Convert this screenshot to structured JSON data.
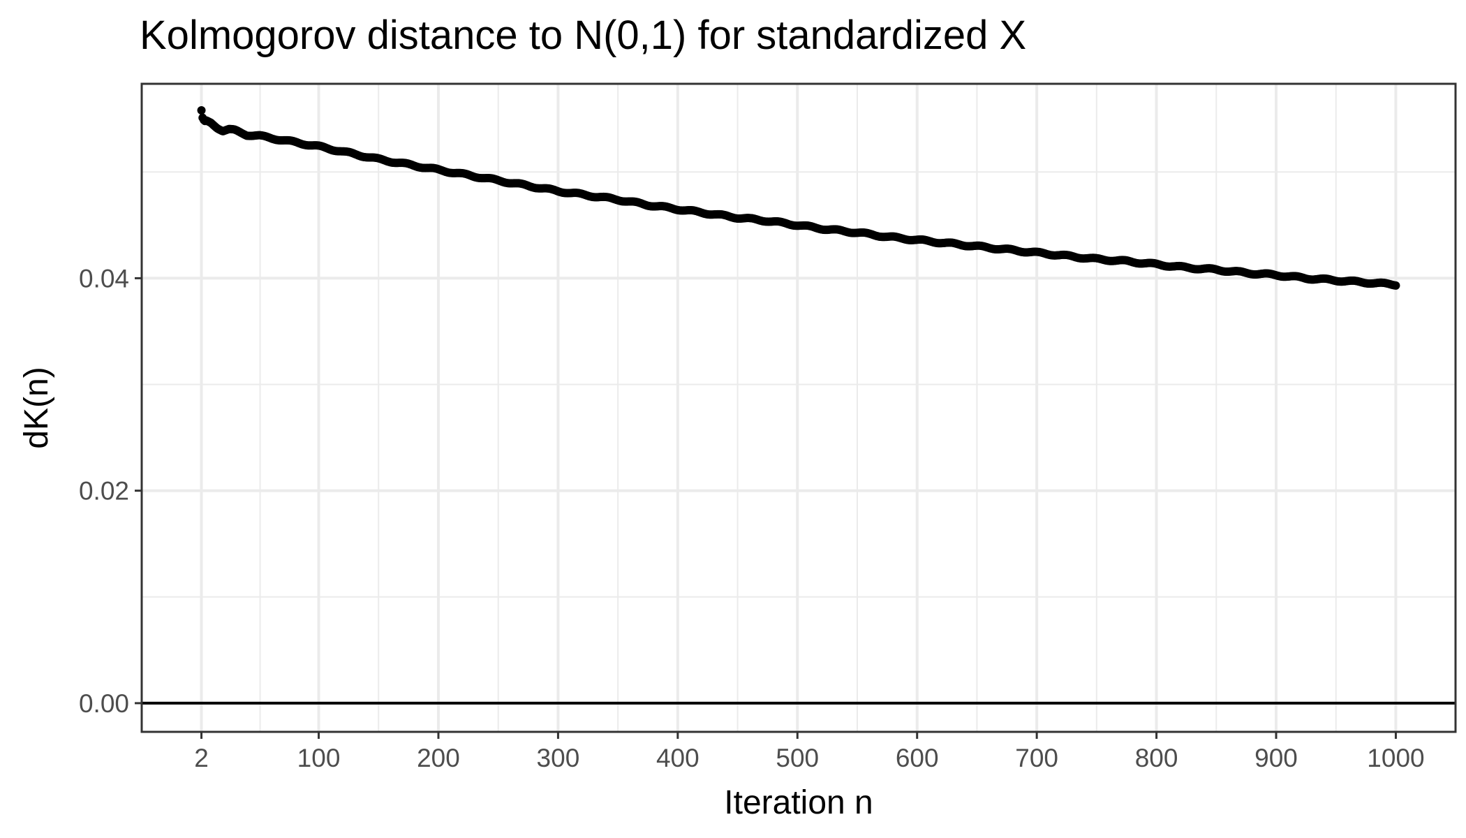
{
  "chart_data": {
    "type": "scatter",
    "title": "Kolmogorov distance to N(0,1) for standardized X",
    "xlabel": "Iteration n",
    "ylabel": "dK(n)",
    "xlim": [
      -47.9,
      1049.9
    ],
    "ylim": [
      -0.0027,
      0.0583
    ],
    "x_ticks": [
      2,
      100,
      200,
      300,
      400,
      500,
      600,
      700,
      800,
      900,
      1000
    ],
    "x_tick_labels": [
      "2",
      "100",
      "200",
      "300",
      "400",
      "500",
      "600",
      "700",
      "800",
      "900",
      "1000"
    ],
    "y_ticks": [
      0.0,
      0.02,
      0.04
    ],
    "y_tick_labels": [
      "0.00",
      "0.02",
      "0.04"
    ],
    "hline_y": 0,
    "grid": true,
    "legend": "none",
    "n_range": [
      2,
      1000
    ],
    "series": [
      {
        "color": "#000000",
        "x": [
          2,
          3,
          4,
          5,
          10,
          15,
          20,
          25,
          30,
          40,
          50,
          60,
          70,
          80,
          90,
          100,
          125,
          150,
          175,
          200,
          225,
          250,
          275,
          300,
          325,
          350,
          375,
          400,
          425,
          450,
          475,
          500,
          525,
          550,
          575,
          600,
          625,
          650,
          675,
          700,
          725,
          750,
          775,
          800,
          825,
          850,
          875,
          900,
          925,
          950,
          975,
          1000
        ],
        "y": [
          0.0558,
          0.0551,
          0.0549,
          0.0548,
          0.0546,
          0.0542,
          0.0539,
          0.054,
          0.0539,
          0.0535,
          0.0534,
          0.0532,
          0.053,
          0.0528,
          0.0526,
          0.0524,
          0.0518,
          0.0512,
          0.0507,
          0.0502,
          0.0497,
          0.0492,
          0.0487,
          0.0482,
          0.0478,
          0.0474,
          0.0469,
          0.0465,
          0.0461,
          0.0457,
          0.0454,
          0.045,
          0.0446,
          0.0443,
          0.0439,
          0.0436,
          0.0433,
          0.043,
          0.0427,
          0.0424,
          0.0421,
          0.0418,
          0.0416,
          0.0413,
          0.041,
          0.0408,
          0.0405,
          0.0403,
          0.04,
          0.0398,
          0.0396,
          0.0394
        ]
      }
    ]
  }
}
